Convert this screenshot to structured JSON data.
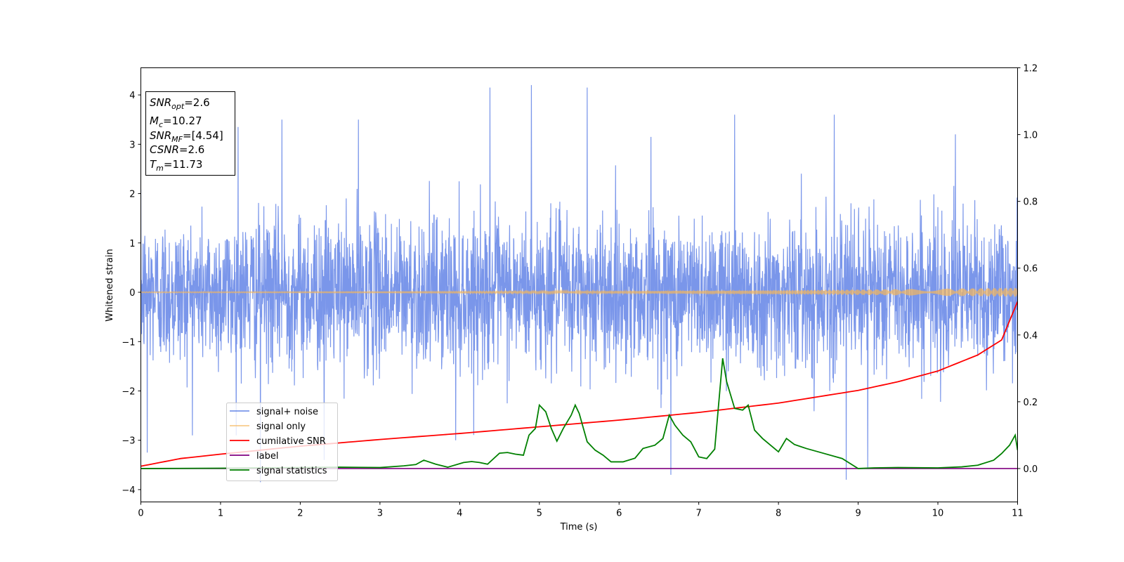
{
  "chart_data": {
    "type": "line",
    "xlabel": "Time (s)",
    "ylabel": "Whitened strain",
    "xlim": [
      0,
      11
    ],
    "ylim": [
      -4.25,
      4.55
    ],
    "y2lim": [
      -0.1,
      1.2
    ],
    "x_ticks": [
      "0",
      "1",
      "2",
      "3",
      "4",
      "5",
      "6",
      "7",
      "8",
      "9",
      "10",
      "11"
    ],
    "y_ticks": [
      "−4",
      "−3",
      "−2",
      "−1",
      "0",
      "1",
      "2",
      "3",
      "4"
    ],
    "y2_ticks": [
      "0.0",
      "0.2",
      "0.4",
      "0.6",
      "0.8",
      "1.0",
      "1.2"
    ],
    "annotation": [
      {
        "name": "SNR",
        "sub": "opt",
        "value": "=2.6"
      },
      {
        "name": "M",
        "sub": "c",
        "value": "=10.27"
      },
      {
        "name": "SNR",
        "sub": "MF",
        "value": "=[4.54]"
      },
      {
        "name": "CSNR",
        "sub": "",
        "value": "=2.6"
      },
      {
        "name": "T",
        "sub": "m",
        "value": "=11.73"
      }
    ],
    "legend_position": "lower-left",
    "series": [
      {
        "name": "signal+ noise",
        "color": "#4169e1",
        "axis": "left",
        "kind": "noise",
        "note": "dense random noise, amplitude ~ ±2, peaks up to ~4.2",
        "peaks": [
          [
            1.22,
            3.35
          ],
          [
            1.77,
            3.5
          ],
          [
            2.73,
            3.5
          ],
          [
            4.38,
            4.15
          ],
          [
            4.9,
            4.2
          ],
          [
            5.6,
            4.15
          ],
          [
            6.4,
            3.15
          ],
          [
            7.45,
            3.6
          ],
          [
            8.7,
            3.6
          ],
          [
            10.22,
            3.2
          ],
          [
            0.08,
            -3.25
          ],
          [
            1.5,
            -3.85
          ],
          [
            6.65,
            -3.7
          ],
          [
            8.85,
            -3.8
          ],
          [
            9.12,
            -3.55
          ],
          [
            2.3,
            -3.4
          ],
          [
            3.95,
            -3.0
          ]
        ]
      },
      {
        "name": "signal only",
        "color": "#f5b65b",
        "axis": "left",
        "kind": "chirp",
        "amp_start": 0.01,
        "amp_end": 0.09
      },
      {
        "name": "cumilative SNR",
        "color": "#ff0000",
        "axis": "right",
        "x": [
          0,
          0.5,
          1,
          2,
          3,
          4,
          5,
          6,
          7,
          8,
          9,
          9.5,
          10,
          10.5,
          10.8,
          11
        ],
        "y": [
          0.007,
          0.03,
          0.043,
          0.067,
          0.087,
          0.105,
          0.125,
          0.145,
          0.168,
          0.196,
          0.234,
          0.26,
          0.292,
          0.34,
          0.385,
          0.5
        ]
      },
      {
        "name": "label",
        "color": "#800080",
        "axis": "right",
        "x": [
          0,
          11
        ],
        "y": [
          0,
          0
        ]
      },
      {
        "name": "signal statistics",
        "color": "#008000",
        "axis": "right",
        "x": [
          0,
          1.0,
          2.0,
          2.5,
          3.0,
          3.3,
          3.45,
          3.55,
          3.7,
          3.85,
          4.05,
          4.15,
          4.25,
          4.35,
          4.5,
          4.6,
          4.7,
          4.8,
          4.87,
          4.95,
          5.0,
          5.08,
          5.15,
          5.22,
          5.3,
          5.4,
          5.45,
          5.5,
          5.6,
          5.7,
          5.8,
          5.9,
          6.05,
          6.2,
          6.3,
          6.45,
          6.55,
          6.63,
          6.7,
          6.8,
          6.9,
          7.0,
          7.1,
          7.2,
          7.3,
          7.35,
          7.45,
          7.55,
          7.62,
          7.7,
          7.8,
          7.9,
          8.0,
          8.1,
          8.2,
          8.35,
          8.5,
          8.8,
          9.0,
          9.2,
          9.5,
          10.0,
          10.3,
          10.5,
          10.7,
          10.8,
          10.9,
          10.97,
          11.0
        ],
        "y": [
          0.0,
          0.001,
          0.003,
          0.004,
          0.003,
          0.008,
          0.012,
          0.025,
          0.013,
          0.004,
          0.018,
          0.021,
          0.018,
          0.013,
          0.046,
          0.048,
          0.043,
          0.04,
          0.1,
          0.12,
          0.19,
          0.17,
          0.12,
          0.082,
          0.12,
          0.16,
          0.19,
          0.165,
          0.08,
          0.055,
          0.04,
          0.02,
          0.02,
          0.031,
          0.06,
          0.07,
          0.09,
          0.16,
          0.13,
          0.1,
          0.08,
          0.035,
          0.03,
          0.058,
          0.33,
          0.26,
          0.18,
          0.175,
          0.19,
          0.115,
          0.09,
          0.07,
          0.05,
          0.09,
          0.072,
          0.06,
          0.05,
          0.03,
          0.0,
          0.002,
          0.003,
          0.002,
          0.005,
          0.01,
          0.025,
          0.045,
          0.07,
          0.1,
          0.055
        ]
      }
    ]
  }
}
